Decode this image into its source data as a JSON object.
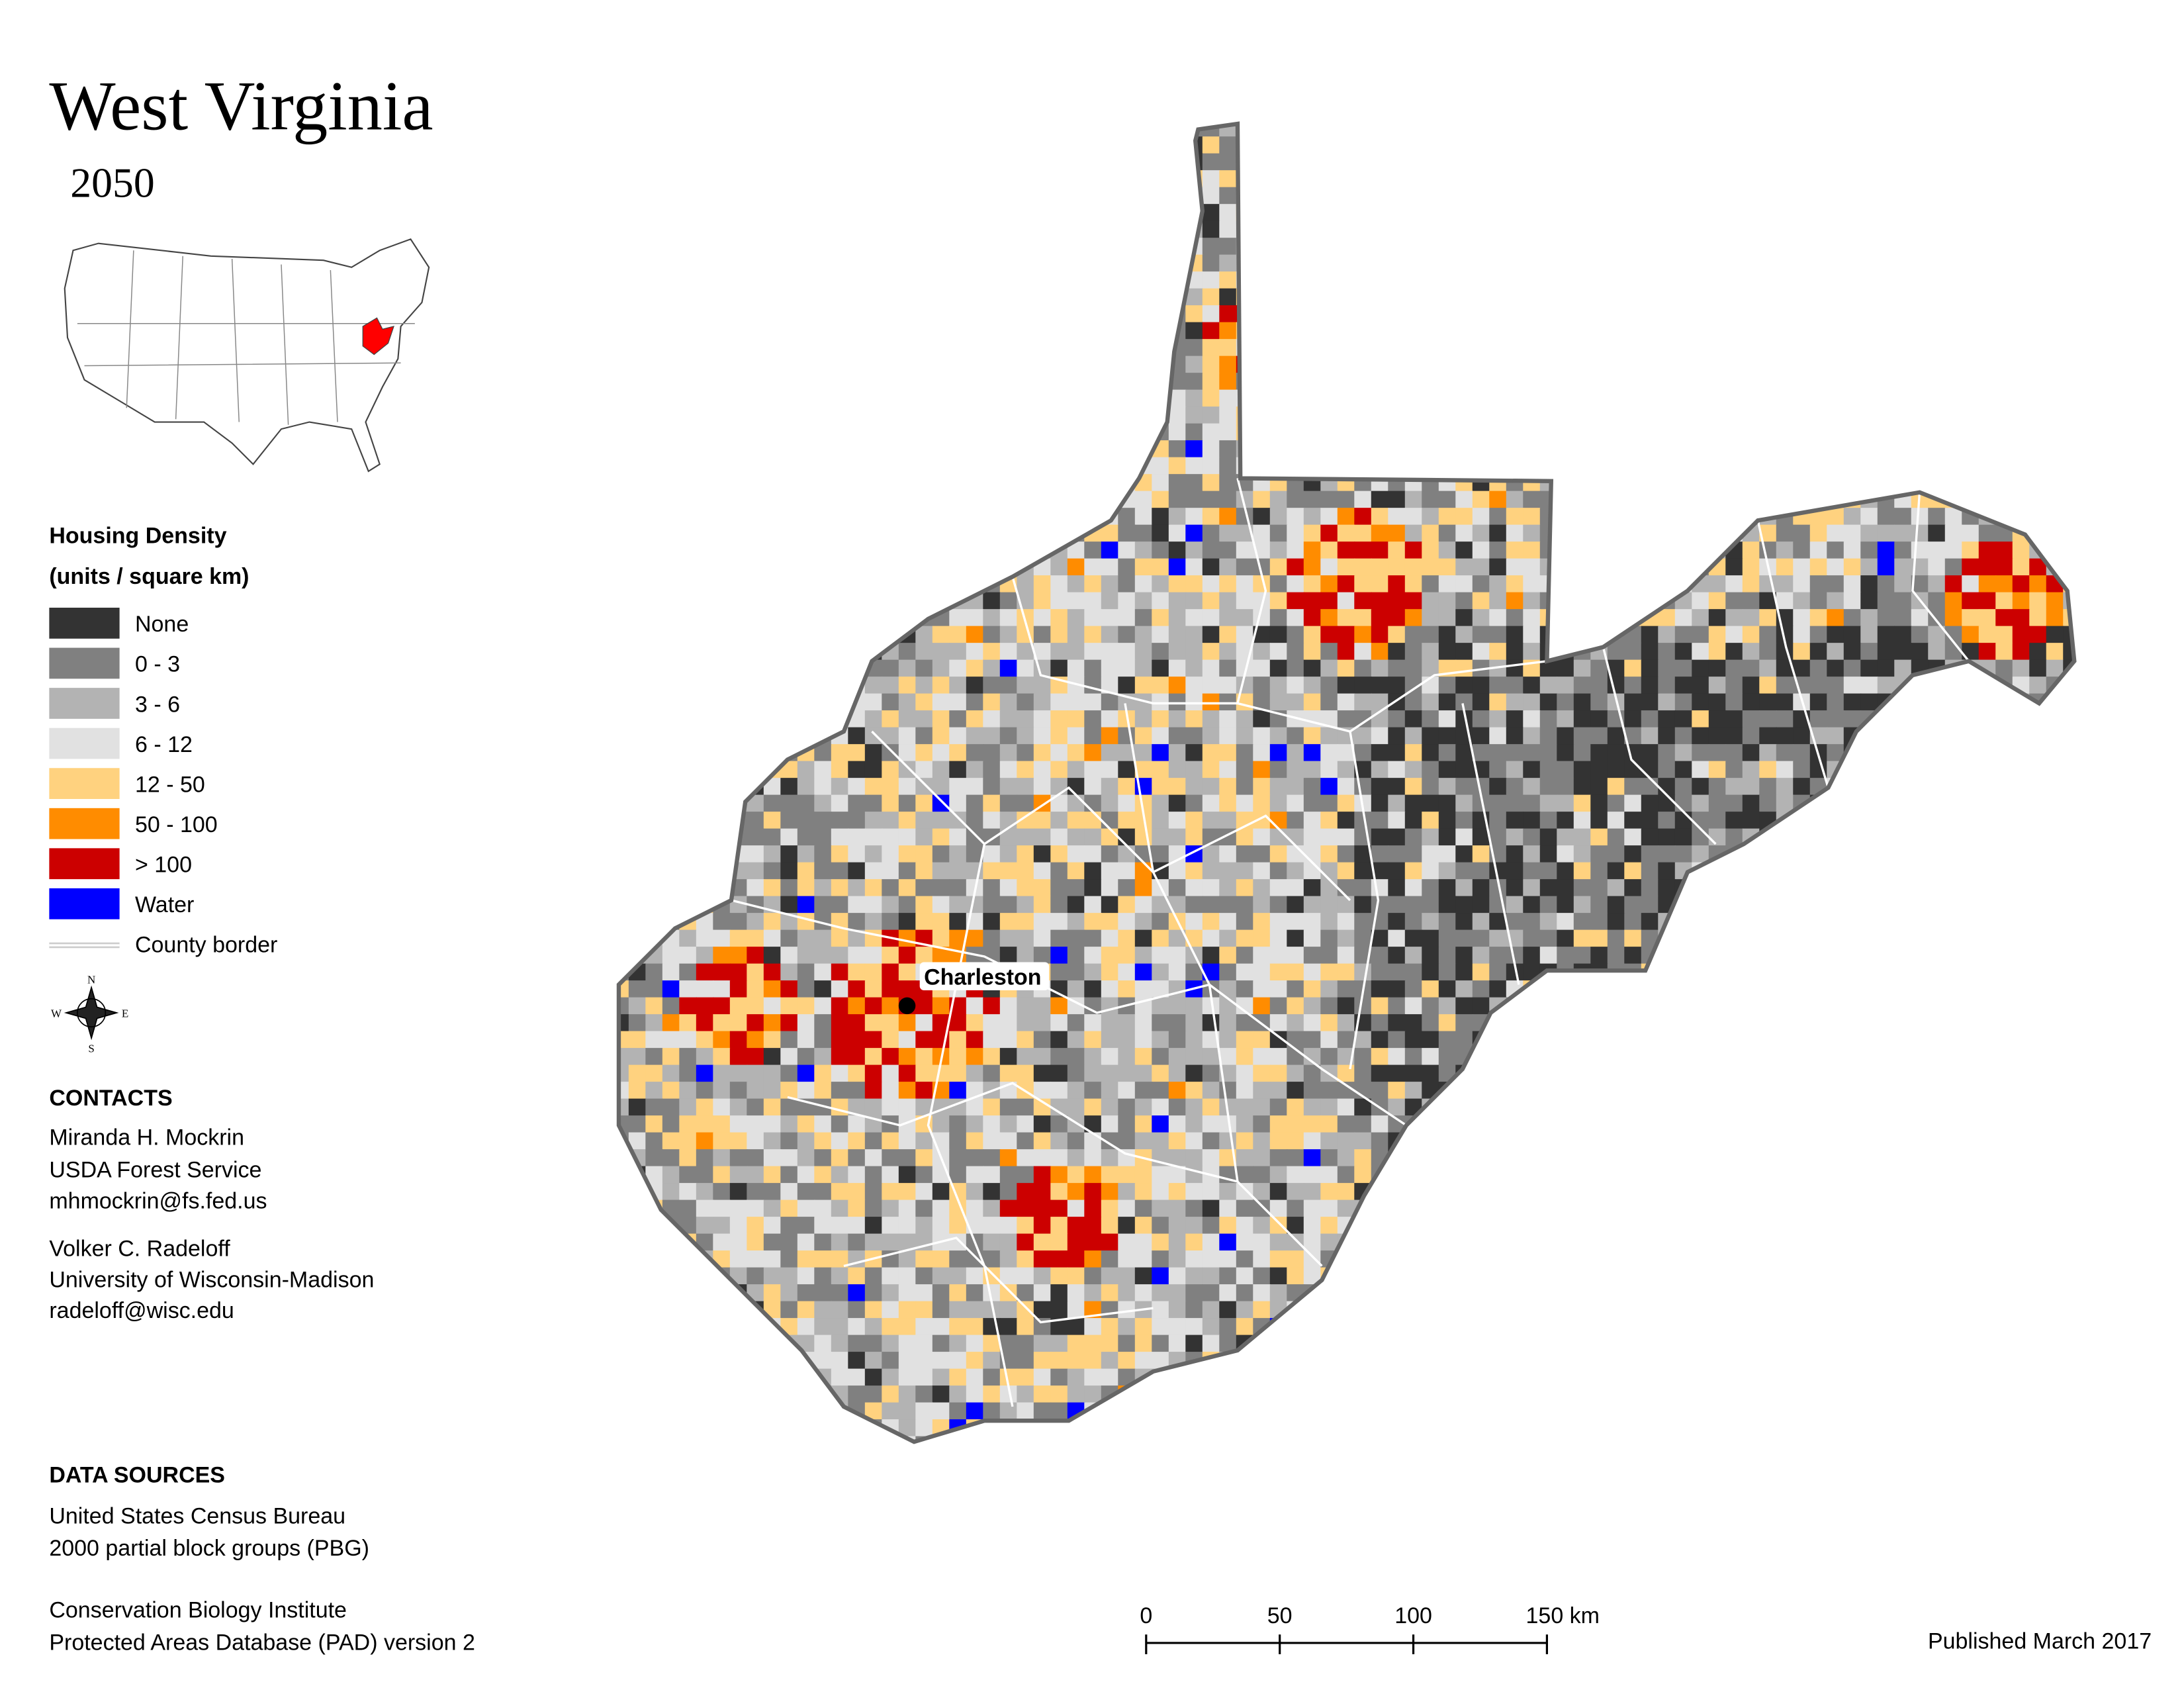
{
  "header": {
    "title": "West Virginia",
    "subtitle": "2050"
  },
  "legend": {
    "title": "Housing Density",
    "units": "(units / square km)",
    "items": [
      {
        "label": "None",
        "color": "#333333"
      },
      {
        "label": "0 - 3",
        "color": "#808080"
      },
      {
        "label": "3 - 6",
        "color": "#b3b3b3"
      },
      {
        "label": "6 - 12",
        "color": "#e1e1e1"
      },
      {
        "label": "12 - 50",
        "color": "#ffd27f"
      },
      {
        "label": "50 - 100",
        "color": "#ff8c00"
      },
      {
        "label": "> 100",
        "color": "#cc0000"
      },
      {
        "label": "Water",
        "color": "#0000ff"
      }
    ],
    "border_label": "County border"
  },
  "map": {
    "city": "Charleston"
  },
  "compass": {
    "n": "N",
    "s": "S",
    "e": "E",
    "w": "W"
  },
  "contacts": {
    "heading": "CONTACTS",
    "people": [
      {
        "name": "Miranda H. Mockrin",
        "org": "USDA Forest Service",
        "email": "mhmockrin@fs.fed.us"
      },
      {
        "name": "Volker C. Radeloff",
        "org": "University of Wisconsin-Madison",
        "email": "radeloff@wisc.edu"
      }
    ]
  },
  "data_sources": {
    "heading": "DATA SOURCES",
    "sources": [
      [
        "United States Census Bureau",
        "2000 partial block groups (PBG)"
      ],
      [
        "Conservation Biology Institute",
        "Protected Areas Database (PAD) version 2"
      ]
    ]
  },
  "scale_bar": {
    "labels": [
      "0",
      "50",
      "100",
      "150 km"
    ]
  },
  "footer": {
    "published": "Published March 2017"
  }
}
